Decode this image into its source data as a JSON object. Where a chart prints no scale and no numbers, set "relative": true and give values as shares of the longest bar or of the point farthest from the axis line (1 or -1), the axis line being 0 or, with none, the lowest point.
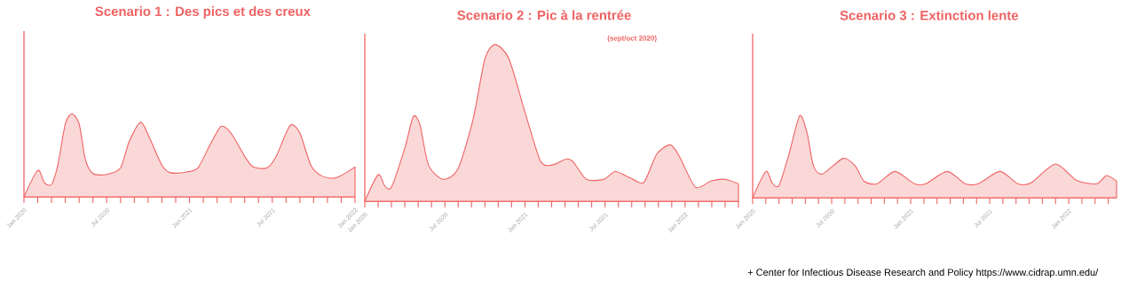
{
  "chart_data": [
    {
      "type": "area",
      "title": "Scenario 1 : Des pics et des creux",
      "relative": true,
      "color": "#ef6262",
      "x": [
        "2020-01-01",
        "2020-02-01",
        "2020-02-15",
        "2020-03-01",
        "2020-03-15",
        "2020-04-01",
        "2020-04-15",
        "2020-05-01",
        "2020-05-15",
        "2020-06-01",
        "2020-07-01",
        "2020-08-01",
        "2020-08-20",
        "2020-09-15",
        "2020-10-05",
        "2020-11-01",
        "2020-11-20",
        "2020-12-25",
        "2021-01-20",
        "2021-02-15",
        "2021-03-10",
        "2021-04-01",
        "2021-05-01",
        "2021-05-20",
        "2021-06-20",
        "2021-07-10",
        "2021-08-10",
        "2021-09-01",
        "2021-09-25",
        "2021-10-20",
        "2021-11-20",
        "2022-01-01"
      ],
      "values": [
        0,
        0.32,
        0.17,
        0.15,
        0.38,
        0.88,
        1,
        0.88,
        0.45,
        0.28,
        0.27,
        0.35,
        0.66,
        0.9,
        0.7,
        0.38,
        0.29,
        0.3,
        0.35,
        0.63,
        0.85,
        0.77,
        0.49,
        0.36,
        0.35,
        0.49,
        0.86,
        0.77,
        0.38,
        0.25,
        0.23,
        0.36
      ],
      "xlim": [
        "2020-01",
        "2022-01"
      ],
      "xticks": [
        {
          "value": "2020-01",
          "label": "Jan 2020"
        },
        {
          "value": "2020-02",
          "label": null
        },
        {
          "value": "2020-03",
          "label": null
        },
        {
          "value": "2020-04",
          "label": null
        },
        {
          "value": "2020-05",
          "label": null
        },
        {
          "value": "2020-06",
          "label": null
        },
        {
          "value": "2020-07",
          "label": "Jul 2020"
        },
        {
          "value": "2020-08",
          "label": null
        },
        {
          "value": "2020-09",
          "label": null
        },
        {
          "value": "2020-10",
          "label": null
        },
        {
          "value": "2020-11",
          "label": null
        },
        {
          "value": "2020-12",
          "label": null
        },
        {
          "value": "2021-01",
          "label": "Jan 2021"
        },
        {
          "value": "2021-02",
          "label": null
        },
        {
          "value": "2021-03",
          "label": null
        },
        {
          "value": "2021-04",
          "label": null
        },
        {
          "value": "2021-05",
          "label": null
        },
        {
          "value": "2021-06",
          "label": null
        },
        {
          "value": "2021-07",
          "label": "Jul 2021"
        },
        {
          "value": "2021-08",
          "label": null
        },
        {
          "value": "2021-09",
          "label": null
        },
        {
          "value": "2021-10",
          "label": null
        },
        {
          "value": "2021-11",
          "label": null
        },
        {
          "value": "2021-12",
          "label": null
        },
        {
          "value": "2022-01",
          "label": "Jan 2022"
        }
      ]
    },
    {
      "type": "area",
      "title": "Scenario 2 : Pic à la rentrée",
      "subtitle": "(sept/oct 2020)",
      "relative": true,
      "color": "#ef6262",
      "x": [
        "2020-01-01",
        "2020-02-01",
        "2020-02-15",
        "2020-03-01",
        "2020-04-01",
        "2020-04-20",
        "2020-05-05",
        "2020-05-25",
        "2020-06-28",
        "2020-08-01",
        "2020-09-05",
        "2020-10-01",
        "2020-10-25",
        "2020-11-25",
        "2021-01-01",
        "2021-02-05",
        "2021-02-28",
        "2021-04-05",
        "2021-04-20",
        "2021-05-20",
        "2021-06-28",
        "2021-07-25",
        "2021-08-28",
        "2021-09-28",
        "2021-10-28",
        "2021-11-28",
        "2021-12-20",
        "2022-01-25",
        "2022-02-28",
        "2022-04-01",
        "2022-05-01"
      ],
      "values": [
        0,
        0.17,
        0.1,
        0.09,
        0.34,
        0.54,
        0.49,
        0.23,
        0.14,
        0.21,
        0.53,
        0.91,
        1,
        0.91,
        0.57,
        0.26,
        0.23,
        0.27,
        0.25,
        0.14,
        0.14,
        0.19,
        0.15,
        0.12,
        0.3,
        0.36,
        0.28,
        0.09,
        0.13,
        0.14,
        0.11
      ],
      "xlim": [
        "2020-01",
        "2022-05"
      ],
      "xticks": [
        {
          "value": "2020-01",
          "label": "Jan 2020"
        },
        {
          "value": "2020-02",
          "label": null
        },
        {
          "value": "2020-03",
          "label": null
        },
        {
          "value": "2020-04",
          "label": null
        },
        {
          "value": "2020-05",
          "label": null
        },
        {
          "value": "2020-06",
          "label": null
        },
        {
          "value": "2020-07",
          "label": "Jul 2020"
        },
        {
          "value": "2020-08",
          "label": null
        },
        {
          "value": "2020-09",
          "label": null
        },
        {
          "value": "2020-10",
          "label": null
        },
        {
          "value": "2020-11",
          "label": null
        },
        {
          "value": "2020-12",
          "label": null
        },
        {
          "value": "2021-01",
          "label": "Jan 2021"
        },
        {
          "value": "2021-02",
          "label": null
        },
        {
          "value": "2021-03",
          "label": null
        },
        {
          "value": "2021-04",
          "label": null
        },
        {
          "value": "2021-05",
          "label": null
        },
        {
          "value": "2021-06",
          "label": null
        },
        {
          "value": "2021-07",
          "label": "Jul 2021"
        },
        {
          "value": "2021-08",
          "label": null
        },
        {
          "value": "2021-09",
          "label": null
        },
        {
          "value": "2021-10",
          "label": null
        },
        {
          "value": "2021-11",
          "label": null
        },
        {
          "value": "2021-12",
          "label": null
        },
        {
          "value": "2022-01",
          "label": "Jan 2022"
        },
        {
          "value": "2022-02",
          "label": null
        },
        {
          "value": "2022-03",
          "label": null
        },
        {
          "value": "2022-04",
          "label": null
        },
        {
          "value": "2022-05",
          "label": null
        }
      ]
    },
    {
      "type": "area",
      "title": "Scenario 3 : Extinction lente",
      "relative": true,
      "color": "#ef6262",
      "x": [
        "2020-01-01",
        "2020-02-01",
        "2020-02-15",
        "2020-03-01",
        "2020-03-25",
        "2020-04-18",
        "2020-05-05",
        "2020-05-20",
        "2020-06-10",
        "2020-07-28",
        "2020-08-25",
        "2020-09-15",
        "2020-10-15",
        "2020-11-25",
        "2021-01-10",
        "2021-02-05",
        "2021-03-25",
        "2021-05-05",
        "2021-06-05",
        "2021-07-25",
        "2021-09-05",
        "2021-10-05",
        "2021-12-01",
        "2022-01-20",
        "2022-03-05",
        "2022-03-28",
        "2022-04-20"
      ],
      "values": [
        0,
        0.32,
        0.18,
        0.15,
        0.54,
        1,
        0.79,
        0.39,
        0.29,
        0.48,
        0.39,
        0.2,
        0.17,
        0.32,
        0.17,
        0.17,
        0.32,
        0.17,
        0.17,
        0.32,
        0.17,
        0.18,
        0.41,
        0.21,
        0.17,
        0.27,
        0.2
      ],
      "xlim": [
        "2020-01",
        "2022-04-20"
      ],
      "xticks": [
        {
          "value": "2020-01",
          "label": "Jan 2020"
        },
        {
          "value": "2020-02",
          "label": null
        },
        {
          "value": "2020-03",
          "label": null
        },
        {
          "value": "2020-04",
          "label": null
        },
        {
          "value": "2020-05",
          "label": null
        },
        {
          "value": "2020-06",
          "label": null
        },
        {
          "value": "2020-07",
          "label": "Jul 2020"
        },
        {
          "value": "2020-08",
          "label": null
        },
        {
          "value": "2020-09",
          "label": null
        },
        {
          "value": "2020-10",
          "label": null
        },
        {
          "value": "2020-11",
          "label": null
        },
        {
          "value": "2020-12",
          "label": null
        },
        {
          "value": "2021-01",
          "label": "Jan 2021"
        },
        {
          "value": "2021-02",
          "label": null
        },
        {
          "value": "2021-03",
          "label": null
        },
        {
          "value": "2021-04",
          "label": null
        },
        {
          "value": "2021-05",
          "label": null
        },
        {
          "value": "2021-06",
          "label": null
        },
        {
          "value": "2021-07",
          "label": "Jul 2021"
        },
        {
          "value": "2021-08",
          "label": null
        },
        {
          "value": "2021-09",
          "label": null
        },
        {
          "value": "2021-10",
          "label": null
        },
        {
          "value": "2021-11",
          "label": null
        },
        {
          "value": "2021-12",
          "label": null
        },
        {
          "value": "2022-01",
          "label": "Jan 2022"
        },
        {
          "value": "2022-02",
          "label": null
        },
        {
          "value": "2022-03",
          "label": null
        },
        {
          "value": "2022-04",
          "label": null
        }
      ],
      "annotations": [
        "+ Center for Infectious Disease Research and Policy https://www.cidrap.umn.edu/"
      ]
    }
  ]
}
